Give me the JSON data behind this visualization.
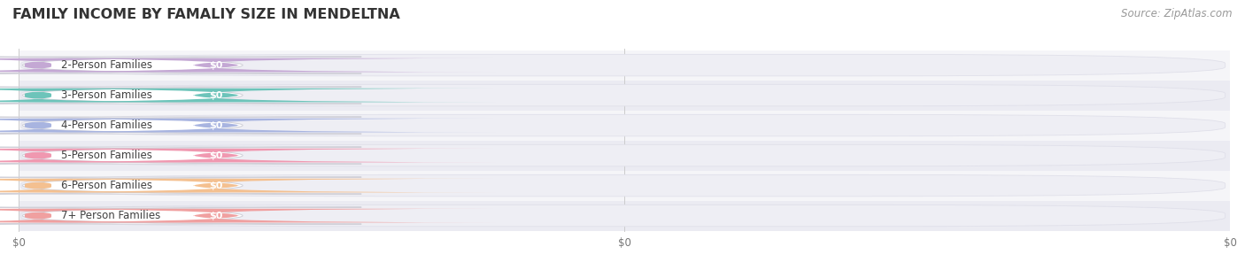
{
  "title": "FAMILY INCOME BY FAMALIY SIZE IN MENDELTNA",
  "source_text": "Source: ZipAtlas.com",
  "categories": [
    "2-Person Families",
    "3-Person Families",
    "4-Person Families",
    "5-Person Families",
    "6-Person Families",
    "7+ Person Families"
  ],
  "values": [
    0,
    0,
    0,
    0,
    0,
    0
  ],
  "bar_colors": [
    "#c4a8d4",
    "#6dc4ba",
    "#a8b4e0",
    "#f098b0",
    "#f4c090",
    "#f0a0a0"
  ],
  "value_labels": [
    "$0",
    "$0",
    "$0",
    "$0",
    "$0",
    "$0"
  ],
  "background_color": "#ffffff",
  "row_bg_even": "#f5f5f8",
  "row_bg_odd": "#ebebf2",
  "bar_track_color": "#eeeef4",
  "bar_track_edge": "#e0e0ea",
  "title_fontsize": 11.5,
  "source_fontsize": 8.5,
  "label_fontsize": 8.5,
  "tick_fontsize": 8.5,
  "grid_color": "#cccccc",
  "xtick_positions": [
    0,
    0.5,
    1.0
  ],
  "xtick_labels": [
    "$0",
    "$0",
    "$0"
  ]
}
